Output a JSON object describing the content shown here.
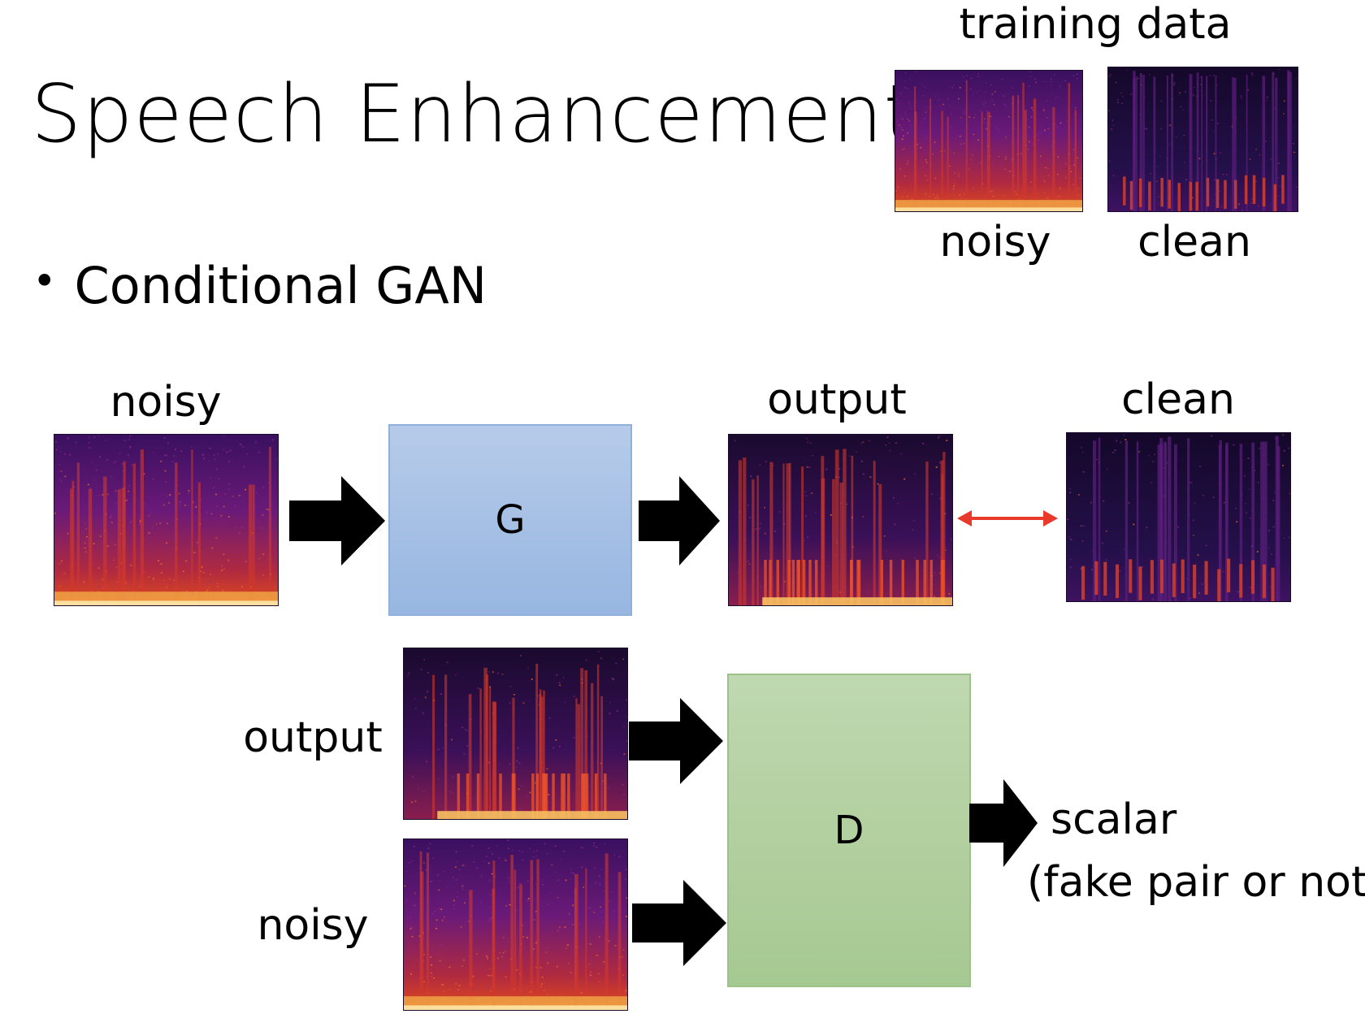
{
  "slide": {
    "title": "Speech Enhancement",
    "bullet": "Conditional GAN"
  },
  "training_data": {
    "heading": "training data",
    "noisy_label": "noisy",
    "clean_label": "clean"
  },
  "generator_row": {
    "input_label": "noisy",
    "generator_label": "G",
    "output_label": "output",
    "target_label": "clean"
  },
  "discriminator_row": {
    "output_label": "output",
    "noisy_label": "noisy",
    "discriminator_label": "D",
    "result_label": "scalar",
    "result_note": "(fake pair or not)"
  },
  "icons": {
    "flow_arrow": "block-arrow-right-icon",
    "compare_arrow": "double-headed-arrow-icon"
  },
  "colors": {
    "generator_fill": "#a8c1e6",
    "discriminator_fill": "#b3d1a0",
    "compare_arrow": "#e8392a",
    "spectrogram_dark": "#1b0a2a"
  }
}
